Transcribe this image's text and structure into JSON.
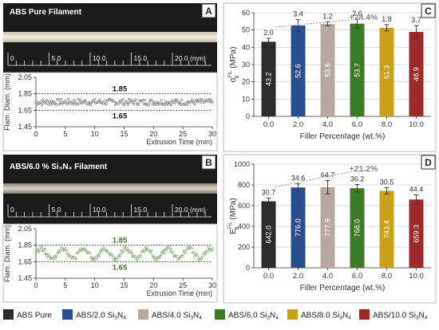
{
  "panels": {
    "A": {
      "letter": "A",
      "photo_title": "ABS Pure Filament",
      "ruler_ticks": [
        "0",
        "5.0",
        "10.0",
        "15.0",
        "20.0"
      ],
      "ruler_unit": "(mm)",
      "ylabel": "Flam. Diam. (mm)",
      "xlabel": "Extrusion Time (min)",
      "yticks": [
        "2.05",
        "1.85",
        "1.65",
        "1.45"
      ],
      "xticks": [
        "0",
        "5",
        "10",
        "15",
        "20",
        "25",
        "30"
      ],
      "upper_label": "1.85",
      "lower_label": "1.65"
    },
    "B": {
      "letter": "B",
      "photo_title": "ABS/6.0 % Si₃N₄ Filament",
      "ruler_ticks": [
        "0",
        "5.0",
        "10.0",
        "15.0",
        "20.0"
      ],
      "ruler_unit": "(mm)",
      "ylabel": "Flam. Diam. (mm)",
      "xlabel": "Extrusion Time (min)",
      "yticks": [
        "2.05",
        "1.85",
        "1.65",
        "1.45"
      ],
      "xticks": [
        "0",
        "5",
        "10",
        "15",
        "20",
        "25",
        "30"
      ],
      "upper_label": "1.85",
      "lower_label": "1.65",
      "label_color": "#3d7a25"
    }
  },
  "chart_data": [
    {
      "panel": "C",
      "type": "bar",
      "letter": "C",
      "categories": [
        "0.0",
        "2.0",
        "4.0",
        "6.0",
        "8.0",
        "10.0"
      ],
      "values": [
        43.2,
        52.6,
        53.6,
        53.7,
        51.3,
        48.9
      ],
      "value_labels": [
        "43.2",
        "52.6",
        "53.6",
        "53.7",
        "51.3",
        "48.9"
      ],
      "errors": [
        2.0,
        3.4,
        1.2,
        2.6,
        1.8,
        3.7
      ],
      "error_labels": [
        "2.0",
        "3.4",
        "1.2",
        "2.6",
        "1.8",
        "3.7"
      ],
      "ylabel_main": "σ",
      "ylabel_sub": "B",
      "ylabel_sup": "FIL",
      "ylabel_unit": "(MPa)",
      "xlabel": "Filler Percentage (wt.%)",
      "ylim": [
        0,
        60
      ],
      "yticks": [
        "0",
        "10",
        "20",
        "30",
        "40",
        "50",
        "60"
      ],
      "annotation": "+24.4%",
      "grid": true
    },
    {
      "panel": "D",
      "type": "bar",
      "letter": "D",
      "categories": [
        "0.0",
        "2.0",
        "4.0",
        "6.0",
        "8.0",
        "10.0"
      ],
      "values": [
        642.0,
        776.0,
        777.9,
        768.0,
        743.4,
        659.3
      ],
      "value_labels": [
        "642.0",
        "776.0",
        "777.9",
        "768.0",
        "743.4",
        "659.3"
      ],
      "errors": [
        30.7,
        34.6,
        64.7,
        36.2,
        30.5,
        44.4
      ],
      "error_labels": [
        "30.7",
        "34.6",
        "64.7",
        "36.2",
        "30.5",
        "44.4"
      ],
      "ylabel_main": "E",
      "ylabel_sub": "B",
      "ylabel_sup": "FIL",
      "ylabel_unit": "(MPa)",
      "xlabel": "Filler Percentage (wt.%)",
      "ylim": [
        0,
        1000
      ],
      "yticks": [
        "0",
        "200",
        "400",
        "600",
        "800",
        "1000"
      ],
      "annotation": "+21.2%",
      "grid": true
    }
  ],
  "legend": [
    {
      "label": "ABS Pure",
      "sub": "",
      "color": "#2b2b2b"
    },
    {
      "label": "ABS/2.0 Si",
      "sub": "3N4",
      "color": "#2a4f8f"
    },
    {
      "label": "ABS/4.0 Si",
      "sub": "3N4",
      "color": "#b8a9a0"
    },
    {
      "label": "ABS/6.0 Si",
      "sub": "3N4",
      "color": "#3d7a25"
    },
    {
      "label": "ABS/8.0 Si",
      "sub": "3N4",
      "color": "#c9a21c"
    },
    {
      "label": "ABS/10.0 Si",
      "sub": "3N4",
      "color": "#9c2a2a"
    }
  ],
  "bar_colors": [
    "#2b2b2b",
    "#2a4f8f",
    "#b8a9a0",
    "#3d7a25",
    "#c9a21c",
    "#9c2a2a"
  ]
}
